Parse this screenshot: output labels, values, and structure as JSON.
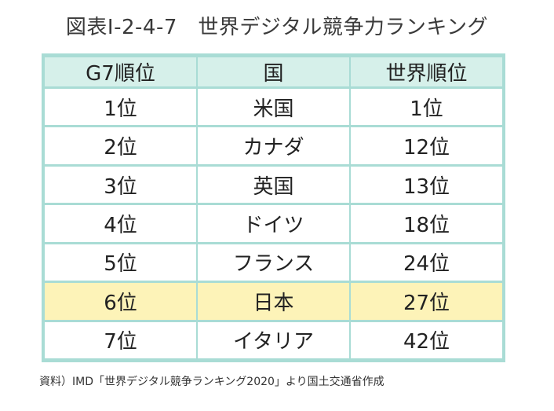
{
  "title": "図表Ⅰ-2-4-7　世界デジタル競争力ランキング",
  "table": {
    "headers": [
      "G7順位",
      "国",
      "世界順位"
    ],
    "rows": [
      {
        "g7_rank": "1位",
        "country": "米国",
        "world_rank": "1位"
      },
      {
        "g7_rank": "2位",
        "country": "カナダ",
        "world_rank": "12位"
      },
      {
        "g7_rank": "3位",
        "country": "英国",
        "world_rank": "13位"
      },
      {
        "g7_rank": "4位",
        "country": "ドイツ",
        "world_rank": "18位"
      },
      {
        "g7_rank": "5位",
        "country": "フランス",
        "world_rank": "24位"
      },
      {
        "g7_rank": "6位",
        "country": "日本",
        "world_rank": "27位"
      },
      {
        "g7_rank": "7位",
        "country": "イタリア",
        "world_rank": "42位"
      }
    ],
    "highlighted_row": 5
  },
  "source": "資料）IMD「世界デジタル競争ランキング2020」より国土交通省作成",
  "colors": {
    "border": "#a9dcd5",
    "header_bg": "#d6f0ea",
    "highlight_bg": "#fdf3b8"
  }
}
